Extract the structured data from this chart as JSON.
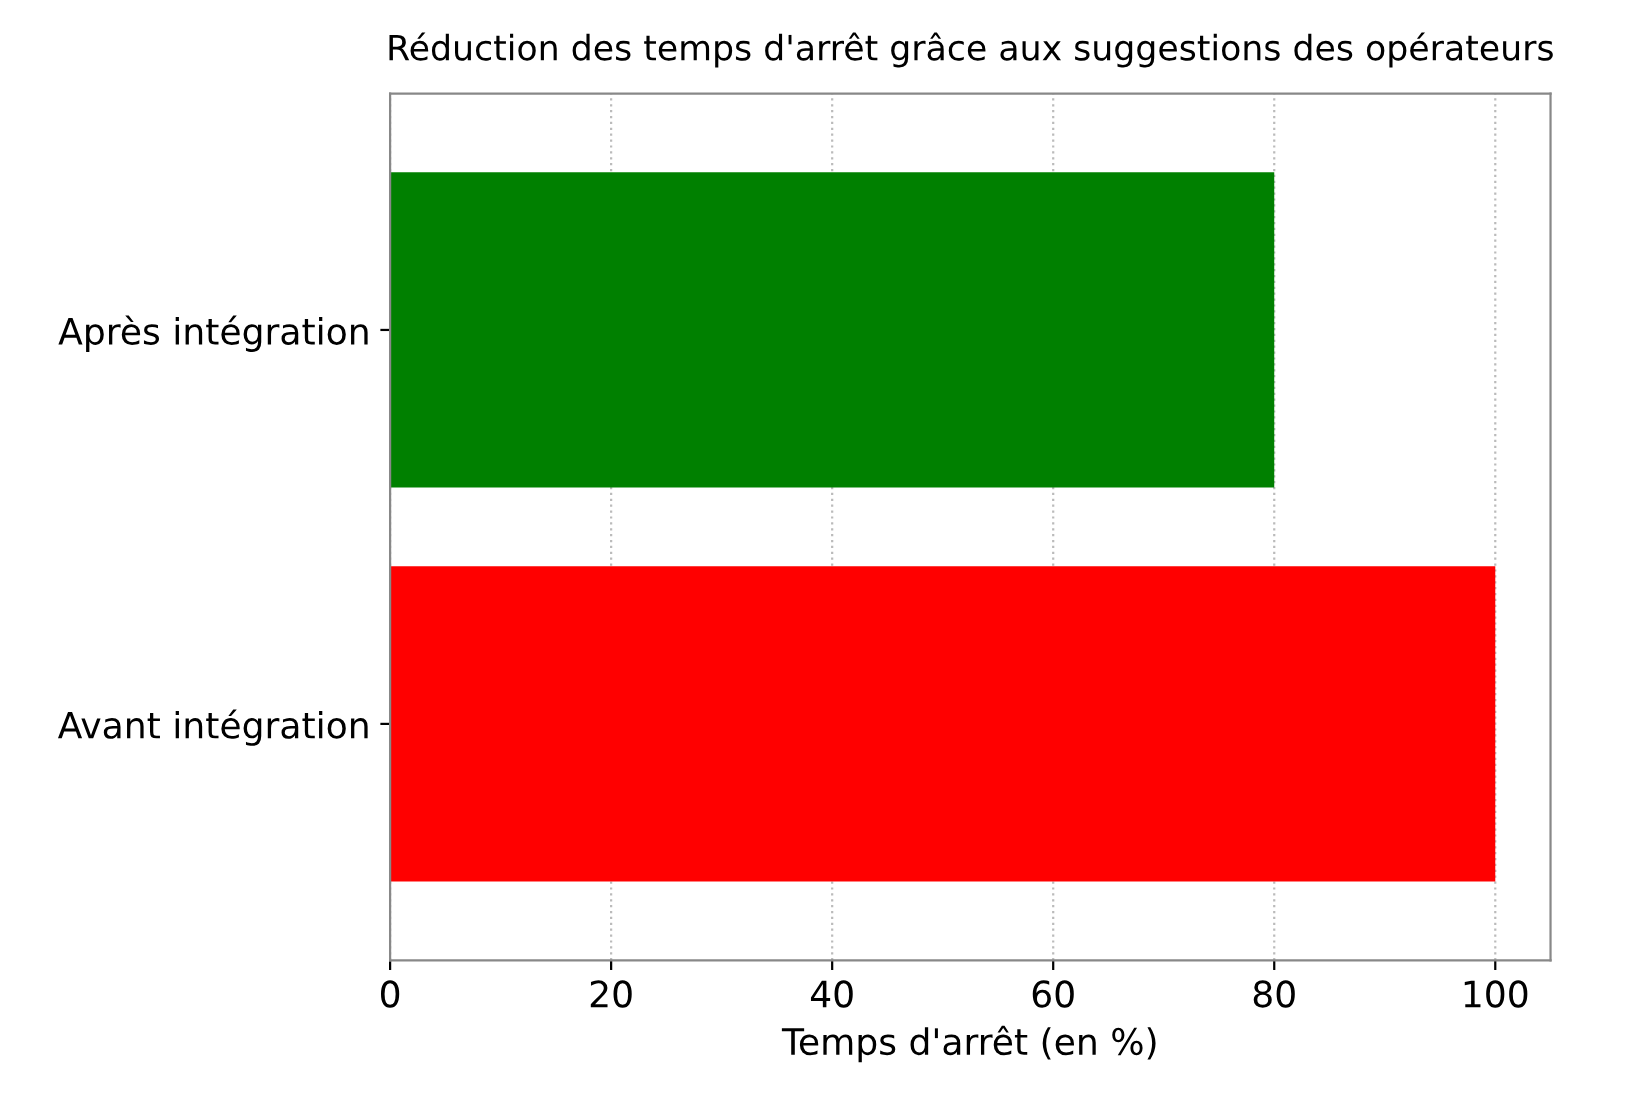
{
  "chart_data": {
    "type": "bar",
    "orientation": "horizontal",
    "title": "Réduction des temps d'arrêt grâce aux suggestions des opérateurs",
    "xlabel": "Temps d'arrêt (en %)",
    "categories": [
      "Après intégration",
      "Avant intégration"
    ],
    "values": [
      80,
      100
    ],
    "colors": [
      "#008000",
      "#ff0000"
    ],
    "xlim": [
      0,
      105
    ],
    "xticks": [
      0,
      20,
      40,
      60,
      80,
      100
    ],
    "grid": "x"
  }
}
